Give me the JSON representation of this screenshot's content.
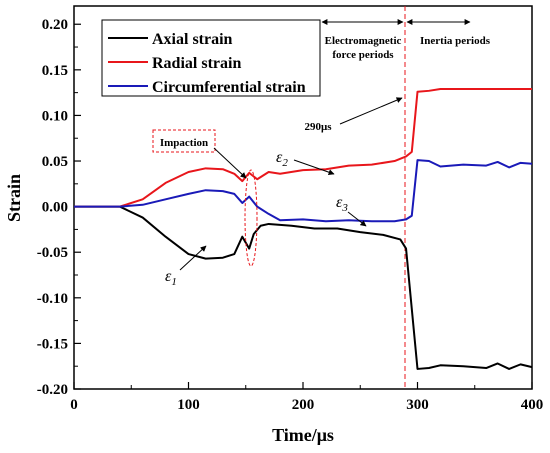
{
  "chart_data": {
    "type": "line",
    "xlabel": "Time/μs",
    "ylabel": "Strain",
    "xlim": [
      0,
      400
    ],
    "ylim": [
      -0.2,
      0.22
    ],
    "xticks": [
      "0",
      "100",
      "200",
      "300",
      "400"
    ],
    "yticks": [
      "-0.20",
      "-0.15",
      "-0.10",
      "-0.05",
      "0.00",
      "0.05",
      "0.10",
      "0.15",
      "0.20"
    ],
    "legend_position": "top-left",
    "grid": false,
    "series": [
      {
        "name": "Axial strain",
        "color": "#000000",
        "x": [
          0,
          40,
          60,
          80,
          100,
          115,
          130,
          140,
          147,
          153,
          157,
          163,
          170,
          190,
          210,
          230,
          250,
          270,
          285,
          290,
          300,
          310,
          320,
          340,
          360,
          370,
          380,
          390,
          400
        ],
        "y": [
          0.0,
          0.0,
          -0.012,
          -0.033,
          -0.052,
          -0.057,
          -0.056,
          -0.052,
          -0.033,
          -0.046,
          -0.03,
          -0.021,
          -0.019,
          -0.021,
          -0.024,
          -0.024,
          -0.028,
          -0.031,
          -0.036,
          -0.046,
          -0.178,
          -0.177,
          -0.174,
          -0.175,
          -0.177,
          -0.172,
          -0.178,
          -0.173,
          -0.176
        ]
      },
      {
        "name": "Radial strain",
        "color": "#e8161b",
        "x": [
          0,
          40,
          60,
          80,
          100,
          115,
          130,
          140,
          147,
          153,
          160,
          170,
          180,
          200,
          220,
          240,
          260,
          280,
          290,
          295,
          300,
          310,
          320,
          340,
          360,
          380,
          400
        ],
        "y": [
          0.0,
          0.0,
          0.008,
          0.026,
          0.038,
          0.042,
          0.041,
          0.036,
          0.028,
          0.037,
          0.03,
          0.038,
          0.036,
          0.04,
          0.041,
          0.045,
          0.046,
          0.05,
          0.055,
          0.06,
          0.126,
          0.127,
          0.129,
          0.129,
          0.129,
          0.129,
          0.129
        ]
      },
      {
        "name": "Circumferential strain",
        "color": "#1a1ab8",
        "x": [
          0,
          40,
          60,
          80,
          100,
          115,
          130,
          140,
          147,
          153,
          160,
          170,
          180,
          200,
          220,
          240,
          260,
          280,
          290,
          295,
          300,
          310,
          320,
          340,
          360,
          370,
          380,
          390,
          400
        ],
        "y": [
          0.0,
          0.0,
          0.002,
          0.008,
          0.014,
          0.018,
          0.017,
          0.014,
          0.004,
          0.011,
          0.0,
          -0.008,
          -0.015,
          -0.014,
          -0.016,
          -0.015,
          -0.016,
          -0.016,
          -0.014,
          -0.01,
          0.051,
          0.05,
          0.044,
          0.046,
          0.045,
          0.049,
          0.043,
          0.048,
          0.047
        ]
      }
    ],
    "annotations": {
      "impaction": "Impaction",
      "em_period": [
        "Electromagnetic",
        "force periods"
      ],
      "inertia_period": "Inertia periods",
      "t290": "290μs",
      "eps1": "ε",
      "eps1_sub": "1",
      "eps2": "ε",
      "eps2_sub": "2",
      "eps3": "ε",
      "eps3_sub": "3"
    }
  }
}
